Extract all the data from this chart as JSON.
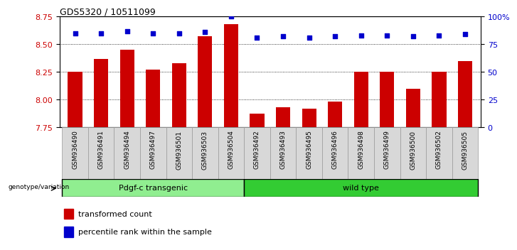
{
  "title": "GDS5320 / 10511099",
  "categories": [
    "GSM936490",
    "GSM936491",
    "GSM936494",
    "GSM936497",
    "GSM936501",
    "GSM936503",
    "GSM936504",
    "GSM936492",
    "GSM936493",
    "GSM936495",
    "GSM936496",
    "GSM936498",
    "GSM936499",
    "GSM936500",
    "GSM936502",
    "GSM936505"
  ],
  "bar_values": [
    8.25,
    8.37,
    8.45,
    8.27,
    8.33,
    8.57,
    8.68,
    7.87,
    7.93,
    7.92,
    7.98,
    8.25,
    8.25,
    8.1,
    8.25,
    8.35
  ],
  "dot_values": [
    85,
    85,
    87,
    85,
    85,
    86,
    100,
    81,
    82,
    81,
    82,
    83,
    83,
    82,
    83,
    84
  ],
  "bar_color": "#cc0000",
  "dot_color": "#0000cc",
  "ylim_left": [
    7.75,
    8.75
  ],
  "ylim_right": [
    0,
    100
  ],
  "yticks_left": [
    7.75,
    8.0,
    8.25,
    8.5,
    8.75
  ],
  "yticks_right": [
    0,
    25,
    50,
    75,
    100
  ],
  "ytick_labels_right": [
    "0",
    "25",
    "50",
    "75",
    "100%"
  ],
  "group1_label": "Pdgf-c transgenic",
  "group2_label": "wild type",
  "group1_count": 7,
  "group2_count": 9,
  "genotype_label": "genotype/variation",
  "legend_bar": "transformed count",
  "legend_dot": "percentile rank within the sample",
  "group1_color": "#90ee90",
  "group2_color": "#33cc33",
  "bar_bottom": 7.75,
  "fig_width": 7.01,
  "fig_height": 3.54
}
